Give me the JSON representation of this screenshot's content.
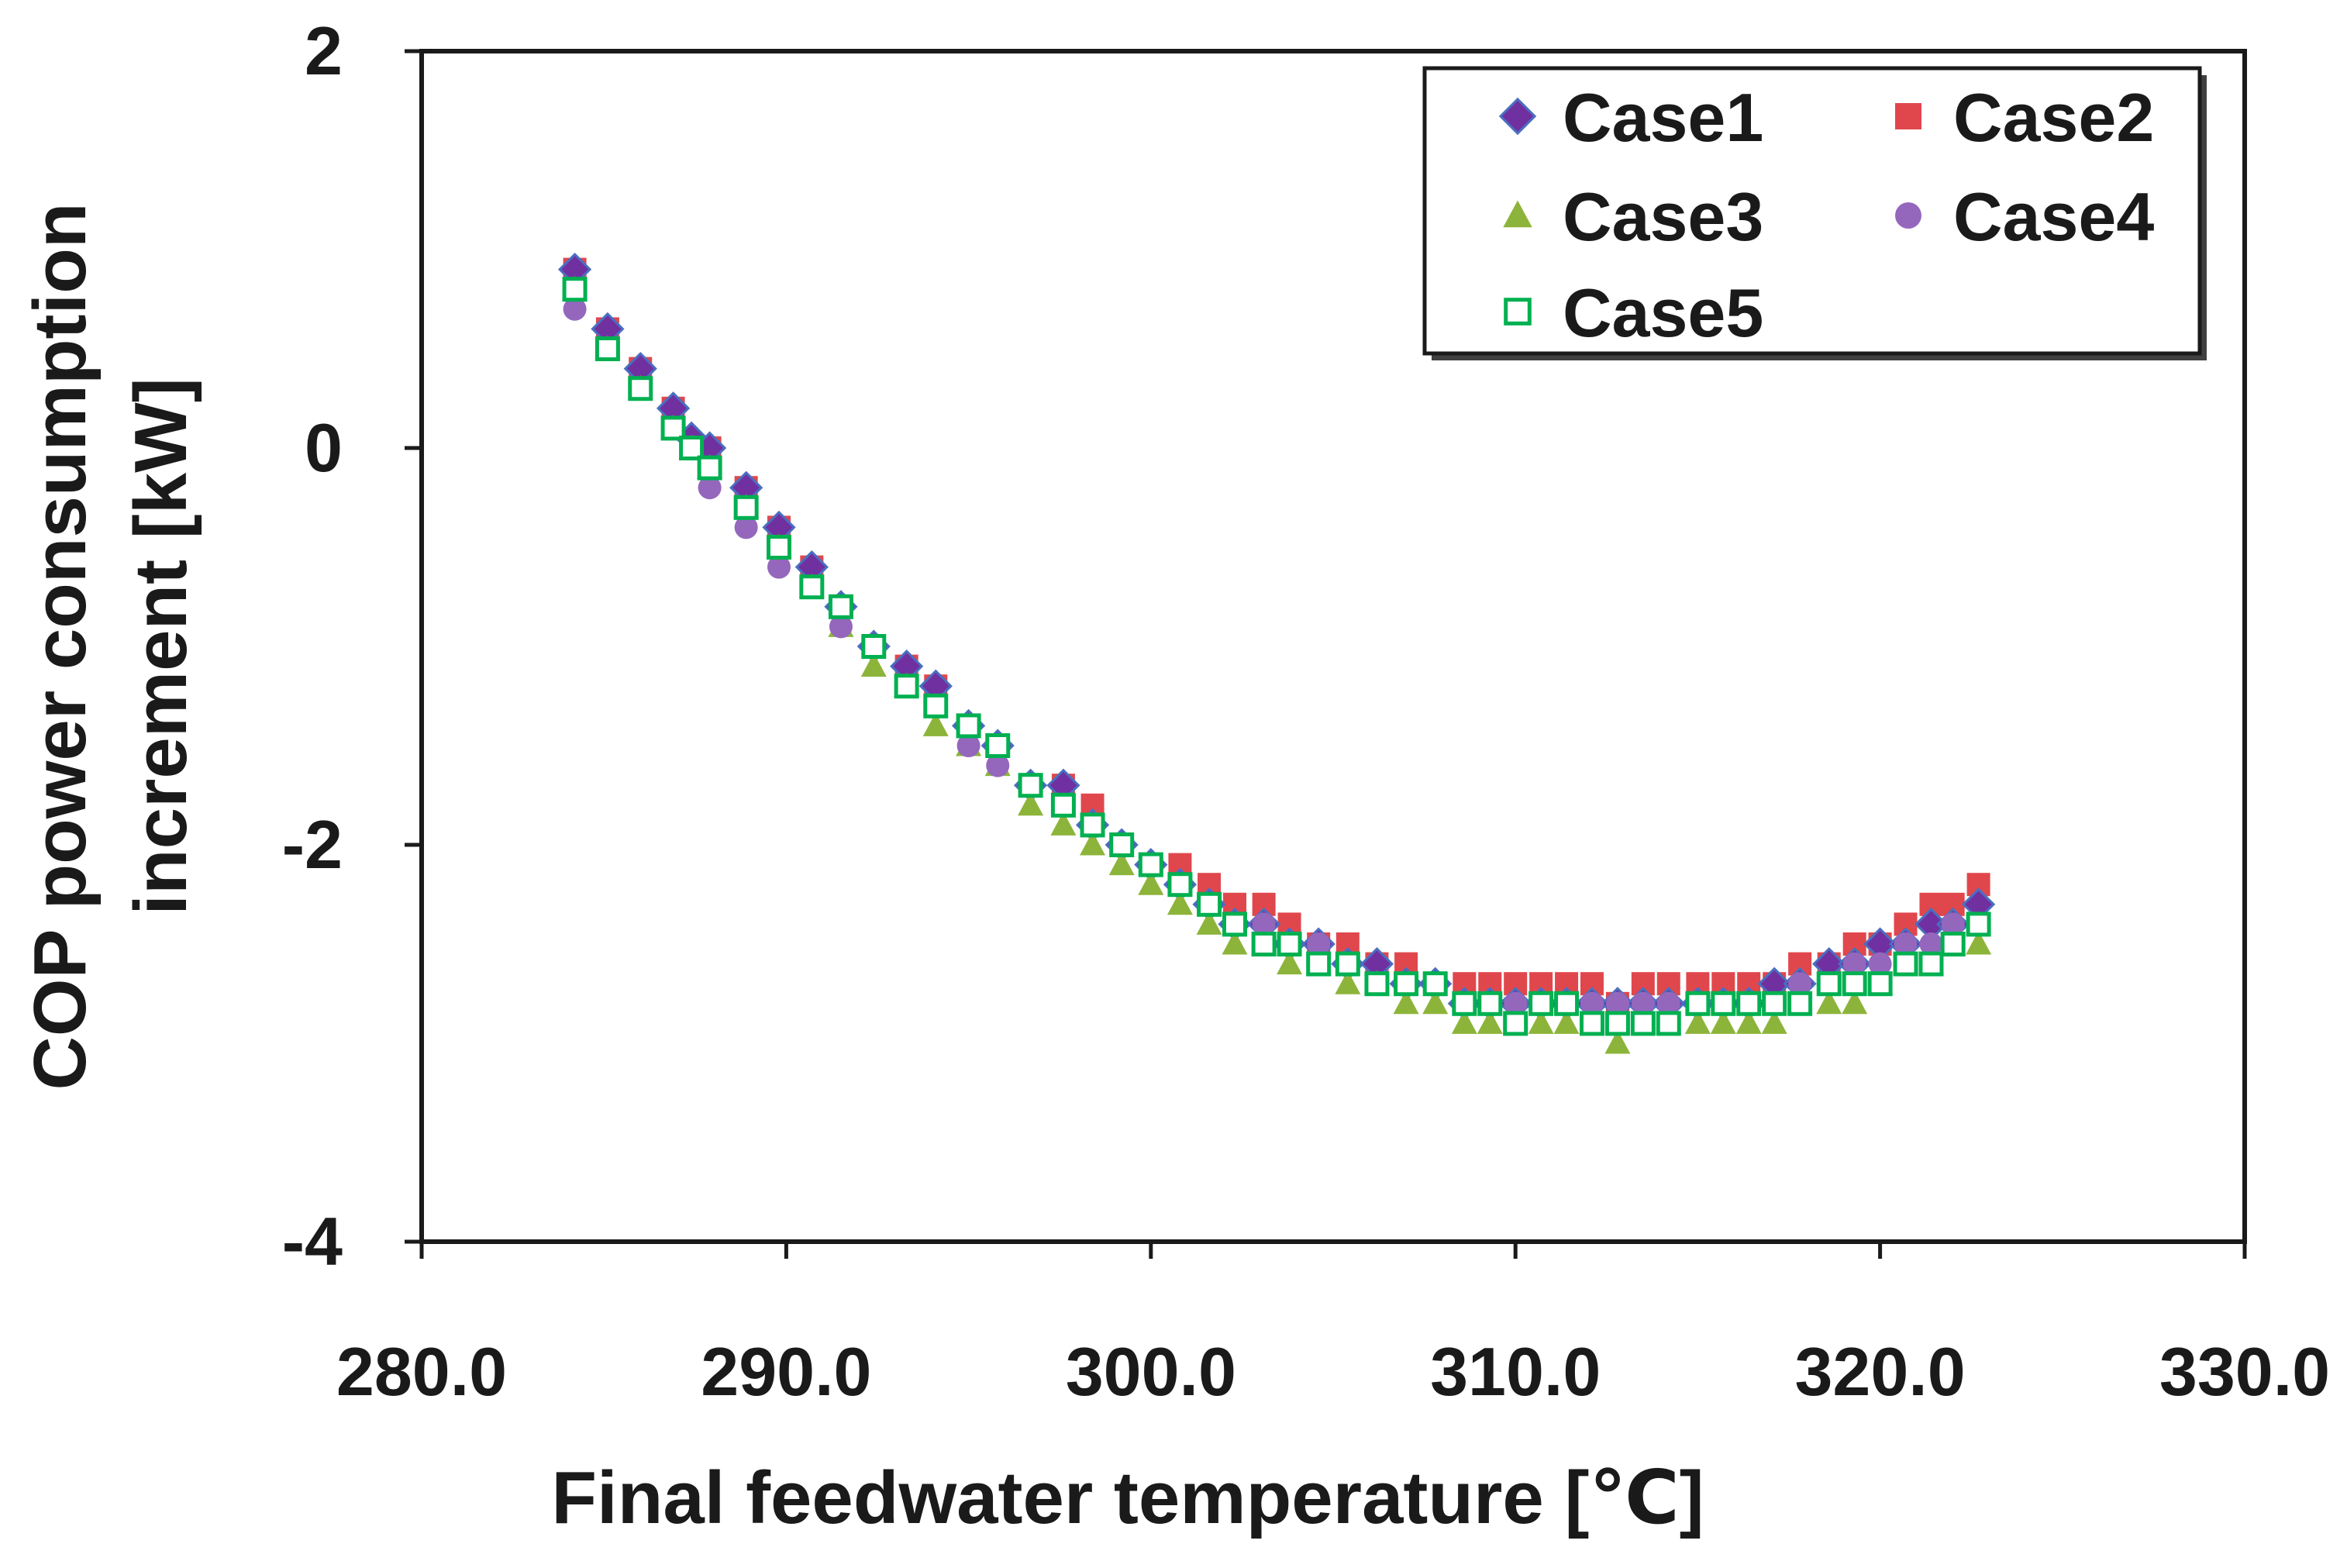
{
  "chart_data": {
    "type": "scatter",
    "title": "",
    "xlabel": "Final feedwater temperature [℃]",
    "ylabel_lines": [
      "COP power consumption",
      "increment [kW]"
    ],
    "xlim": [
      280.0,
      330.0
    ],
    "ylim": [
      -4,
      2
    ],
    "x_ticks": [
      280.0,
      290.0,
      300.0,
      310.0,
      320.0,
      330.0
    ],
    "x_tick_labels": [
      "280.0",
      "290.0",
      "300.0",
      "310.0",
      "320.0",
      "330.0"
    ],
    "y_ticks": [
      -4,
      -2,
      0,
      2
    ],
    "y_tick_labels": [
      "-4",
      "-2",
      "0",
      "2"
    ],
    "grid": false,
    "legend_position": "top-right",
    "x": [
      284.2,
      285.1,
      286.0,
      286.9,
      287.4,
      287.9,
      288.9,
      289.8,
      290.7,
      291.5,
      292.4,
      293.3,
      294.1,
      295.0,
      295.8,
      296.7,
      297.6,
      298.4,
      299.2,
      300.0,
      300.8,
      301.6,
      302.3,
      303.1,
      303.8,
      304.6,
      305.4,
      306.2,
      307.0,
      307.8,
      308.6,
      309.3,
      310.0,
      310.7,
      311.4,
      312.1,
      312.8,
      313.5,
      314.2,
      315.0,
      315.7,
      316.4,
      317.1,
      317.8,
      318.6,
      319.3,
      320.0,
      320.7,
      321.4,
      322.0,
      322.7
    ],
    "series": [
      {
        "name": "Case1",
        "marker": "diamond",
        "color": "#7030a0",
        "values": [
          0.9,
          0.6,
          0.4,
          0.2,
          0.05,
          0.0,
          -0.2,
          -0.4,
          -0.6,
          -0.8,
          -1.0,
          -1.1,
          -1.2,
          -1.4,
          -1.5,
          -1.7,
          -1.7,
          -1.9,
          -2.0,
          -2.1,
          -2.2,
          -2.3,
          -2.4,
          -2.4,
          -2.5,
          -2.5,
          -2.6,
          -2.6,
          -2.7,
          -2.7,
          -2.8,
          -2.8,
          -2.8,
          -2.8,
          -2.8,
          -2.8,
          -2.8,
          -2.8,
          -2.8,
          -2.8,
          -2.8,
          -2.8,
          -2.7,
          -2.7,
          -2.6,
          -2.6,
          -2.5,
          -2.5,
          -2.4,
          -2.4,
          -2.3
        ]
      },
      {
        "name": "Case2",
        "marker": "square",
        "color": "#e0474c",
        "values": [
          0.9,
          0.6,
          0.4,
          0.2,
          0.0,
          0.0,
          -0.2,
          -0.4,
          -0.6,
          -0.8,
          -1.0,
          -1.1,
          -1.2,
          -1.4,
          -1.5,
          -1.7,
          -1.7,
          -1.8,
          -2.0,
          -2.1,
          -2.1,
          -2.2,
          -2.3,
          -2.3,
          -2.4,
          -2.5,
          -2.5,
          -2.6,
          -2.6,
          -2.7,
          -2.7,
          -2.7,
          -2.7,
          -2.7,
          -2.7,
          -2.7,
          -2.8,
          -2.7,
          -2.7,
          -2.7,
          -2.7,
          -2.7,
          -2.7,
          -2.6,
          -2.6,
          -2.5,
          -2.5,
          -2.4,
          -2.3,
          -2.3,
          -2.2
        ]
      },
      {
        "name": "Case3",
        "marker": "triangle",
        "color": "#8db43a",
        "values": [
          0.8,
          0.5,
          0.3,
          0.1,
          0.0,
          -0.1,
          -0.3,
          -0.5,
          -0.7,
          -0.9,
          -1.1,
          -1.2,
          -1.4,
          -1.5,
          -1.6,
          -1.8,
          -1.9,
          -2.0,
          -2.1,
          -2.2,
          -2.3,
          -2.4,
          -2.5,
          -2.5,
          -2.6,
          -2.6,
          -2.7,
          -2.7,
          -2.8,
          -2.8,
          -2.9,
          -2.9,
          -2.9,
          -2.9,
          -2.9,
          -2.9,
          -3.0,
          -2.9,
          -2.9,
          -2.9,
          -2.9,
          -2.9,
          -2.9,
          -2.8,
          -2.8,
          -2.8,
          -2.7,
          -2.6,
          -2.6,
          -2.5,
          -2.5
        ]
      },
      {
        "name": "Case4",
        "marker": "circle",
        "color": "#9467bd",
        "values": [
          0.7,
          0.5,
          0.3,
          0.1,
          0.0,
          -0.2,
          -0.4,
          -0.6,
          -0.7,
          -0.9,
          -1.0,
          -1.2,
          -1.3,
          -1.5,
          -1.6,
          -1.7,
          -1.8,
          -1.9,
          -2.0,
          -2.1,
          -2.2,
          -2.3,
          -2.4,
          -2.4,
          -2.5,
          -2.5,
          -2.6,
          -2.7,
          -2.7,
          -2.7,
          -2.8,
          -2.8,
          -2.8,
          -2.8,
          -2.8,
          -2.8,
          -2.8,
          -2.8,
          -2.8,
          -2.8,
          -2.8,
          -2.8,
          -2.8,
          -2.7,
          -2.7,
          -2.6,
          -2.6,
          -2.5,
          -2.5,
          -2.4,
          -2.4
        ]
      },
      {
        "name": "Case5",
        "marker": "open-square",
        "color": "#00b050",
        "values": [
          0.8,
          0.5,
          0.3,
          0.1,
          0.0,
          -0.1,
          -0.3,
          -0.5,
          -0.7,
          -0.8,
          -1.0,
          -1.2,
          -1.3,
          -1.4,
          -1.5,
          -1.7,
          -1.8,
          -1.9,
          -2.0,
          -2.1,
          -2.2,
          -2.3,
          -2.4,
          -2.5,
          -2.5,
          -2.6,
          -2.6,
          -2.7,
          -2.7,
          -2.7,
          -2.8,
          -2.8,
          -2.9,
          -2.8,
          -2.8,
          -2.9,
          -2.9,
          -2.9,
          -2.9,
          -2.8,
          -2.8,
          -2.8,
          -2.8,
          -2.8,
          -2.7,
          -2.7,
          -2.7,
          -2.6,
          -2.6,
          -2.5,
          -2.4
        ]
      }
    ]
  }
}
